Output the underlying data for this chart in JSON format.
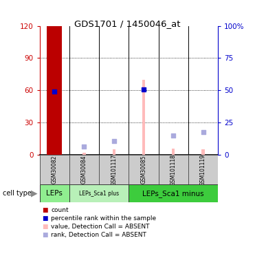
{
  "title": "GDS1701 / 1450046_at",
  "samples": [
    "GSM30082",
    "GSM30084",
    "GSM101117",
    "GSM30085",
    "GSM101118",
    "GSM101119"
  ],
  "cell_types": [
    {
      "label": "LEPs",
      "span": [
        0,
        1
      ],
      "color": "#90EE90"
    },
    {
      "label": "LEPs_Sca1 plus",
      "span": [
        1,
        3
      ],
      "color": "#b8f0b8"
    },
    {
      "label": "LEPs_Sca1 minus",
      "span": [
        3,
        6
      ],
      "color": "#3dcc3d"
    }
  ],
  "count_bars": [
    120,
    0,
    0,
    0,
    0,
    0
  ],
  "count_color": "#bb0000",
  "percentile_vals": [
    59,
    0,
    0,
    61,
    0,
    0
  ],
  "percentile_color": "#0000cc",
  "value_absent_bars": [
    0,
    2,
    5,
    70,
    6,
    5
  ],
  "value_absent_color": "#ffbbbb",
  "rank_absent_vals": [
    0,
    8,
    13,
    0,
    18,
    21
  ],
  "rank_absent_color": "#aaaadd",
  "ylim_left": [
    0,
    120
  ],
  "ylim_right": [
    0,
    100
  ],
  "yticks_left": [
    0,
    30,
    60,
    90,
    120
  ],
  "ytick_labels_left": [
    "0",
    "30",
    "60",
    "90",
    "120"
  ],
  "yticks_right": [
    0,
    25,
    50,
    75,
    100
  ],
  "ytick_labels_right": [
    "0",
    "25",
    "50",
    "75",
    "100%"
  ],
  "left_axis_color": "#cc0000",
  "right_axis_color": "#0000cc",
  "legend_items": [
    {
      "color": "#bb0000",
      "label": "count"
    },
    {
      "color": "#0000cc",
      "label": "percentile rank within the sample"
    },
    {
      "color": "#ffbbbb",
      "label": "value, Detection Call = ABSENT"
    },
    {
      "color": "#aaaadd",
      "label": "rank, Detection Call = ABSENT"
    }
  ]
}
